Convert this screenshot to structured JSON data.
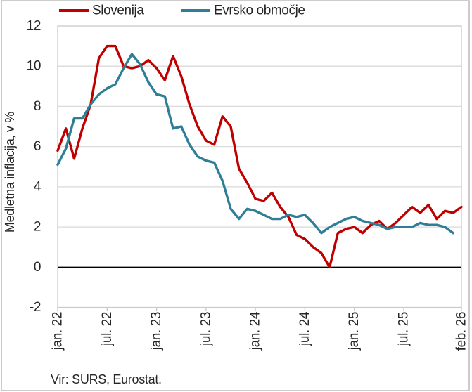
{
  "source": "Vir: SURS, Eurostat.",
  "colors": {
    "slovenija_line": "#C00000",
    "evrsko_obmocje_line": "#2E7F96",
    "gridline": "#D9D9D9",
    "zero_line": "#000000",
    "plot_border": "#C9C9C9",
    "text": "#262626"
  },
  "chart_data": {
    "type": "line",
    "title": "",
    "xlabel": "",
    "ylabel": "Medletna inflacija, v %",
    "ylim": [
      -2,
      12
    ],
    "grid": true,
    "legend_position": "top",
    "x_unit": "month",
    "x_range_labels": [
      "jan. 22",
      "feb. 26"
    ],
    "n_months": 50,
    "x_ticks": [
      {
        "label": "jan. 22",
        "month": 0
      },
      {
        "label": "jul. 22",
        "month": 6
      },
      {
        "label": "jan. 23",
        "month": 12
      },
      {
        "label": "jul. 23",
        "month": 18
      },
      {
        "label": "jan. 24",
        "month": 24
      },
      {
        "label": "jul. 24",
        "month": 30
      },
      {
        "label": "jan. 25",
        "month": 36
      },
      {
        "label": "jul. 25",
        "month": 42
      },
      {
        "label": "feb. 26",
        "month": 49
      }
    ],
    "y_ticks": [
      {
        "label": "12",
        "value": 12
      },
      {
        "label": "10",
        "value": 10
      },
      {
        "label": "8",
        "value": 8
      },
      {
        "label": "6",
        "value": 6
      },
      {
        "label": "4",
        "value": 4
      },
      {
        "label": "2",
        "value": 2
      },
      {
        "label": "0",
        "value": 0
      },
      {
        "label": "-2",
        "value": -2
      }
    ],
    "series": [
      {
        "name": "Slovenija",
        "color": "#C00000",
        "start_month": 0,
        "start_label": "jan. 22",
        "end_label": "feb. 26",
        "values": [
          5.8,
          6.9,
          5.4,
          6.9,
          8.1,
          10.4,
          11.0,
          11.0,
          10.0,
          9.9,
          10.0,
          10.3,
          9.9,
          9.3,
          10.5,
          9.5,
          8.1,
          7.0,
          6.3,
          6.1,
          7.5,
          7.0,
          4.9,
          4.2,
          3.4,
          3.3,
          3.7,
          3.0,
          2.5,
          1.6,
          1.4,
          1.0,
          0.7,
          0.0,
          1.7,
          1.9,
          2.0,
          1.7,
          2.1,
          2.3,
          1.9,
          2.2,
          2.6,
          3.0,
          2.7,
          3.1,
          2.4,
          2.8,
          2.7,
          3.0
        ]
      },
      {
        "name": "Evrsko območje",
        "color": "#2E7F96",
        "start_month": 0,
        "start_label": "jan. 22",
        "end_label": "jan. 26",
        "values": [
          5.1,
          5.9,
          7.4,
          7.4,
          8.1,
          8.6,
          8.9,
          9.1,
          9.9,
          10.6,
          10.1,
          9.2,
          8.6,
          8.5,
          6.9,
          7.0,
          6.1,
          5.5,
          5.3,
          5.2,
          4.3,
          2.9,
          2.4,
          2.9,
          2.8,
          2.6,
          2.4,
          2.4,
          2.6,
          2.5,
          2.6,
          2.2,
          1.7,
          2.0,
          2.2,
          2.4,
          2.5,
          2.3,
          2.2,
          2.1,
          1.9,
          2.0,
          2.0,
          2.0,
          2.2,
          2.1,
          2.1,
          2.0,
          1.7
        ]
      }
    ]
  }
}
